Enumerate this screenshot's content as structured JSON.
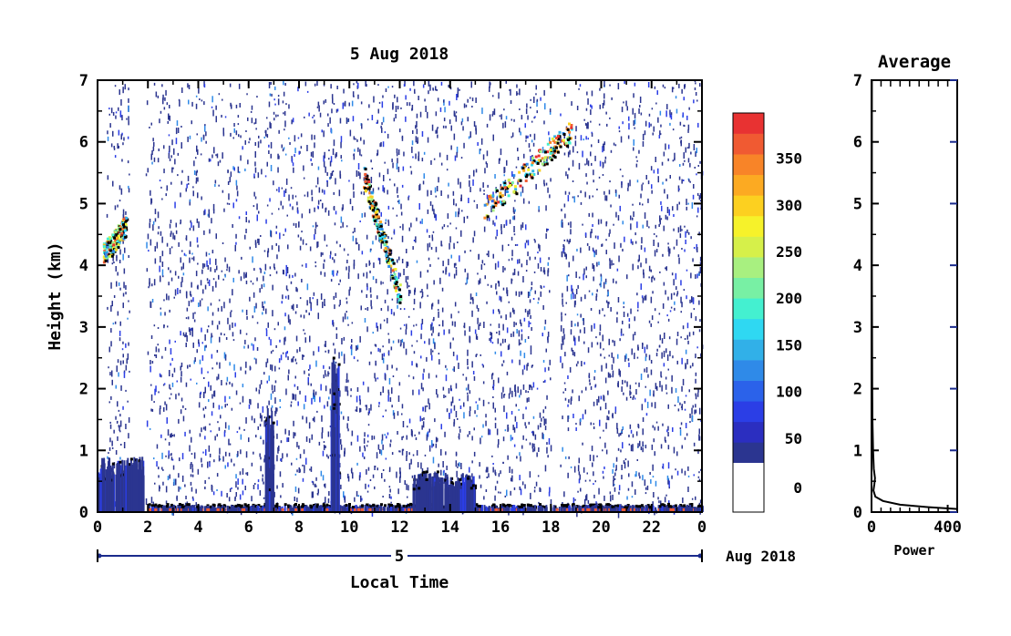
{
  "chart_data": [
    {
      "type": "heatmap",
      "title": "5 Aug 2018",
      "xlabel": "Local Time",
      "ylabel": "Height (km)",
      "xlim": [
        0,
        24
      ],
      "ylim": [
        0,
        7
      ],
      "x_ticks": [
        "0",
        "2",
        "4",
        "6",
        "8",
        "10",
        "12",
        "14",
        "16",
        "18",
        "20",
        "22",
        "0"
      ],
      "y_ticks": [
        "0",
        "1",
        "2",
        "3",
        "4",
        "5",
        "6",
        "7"
      ],
      "date_axis": {
        "day": "5",
        "label": "Aug 2018"
      },
      "colorbar": {
        "ticks": [
          "0",
          "50",
          "100",
          "150",
          "200",
          "250",
          "300",
          "350"
        ],
        "range": [
          0,
          375
        ],
        "colors": [
          "#2b3590",
          "#2b2ec0",
          "#2b3ee6",
          "#2b62ea",
          "#2f8ae8",
          "#31b0e8",
          "#2fd8f2",
          "#44f0d0",
          "#78f0a4",
          "#a8f080",
          "#d6f04a",
          "#f6f22a",
          "#fcd020",
          "#fcaa22",
          "#f88428",
          "#f05a32",
          "#e83232"
        ]
      },
      "features": [
        {
          "name": "low-level echo",
          "x": [
            0,
            1.8
          ],
          "top_km": 0.9
        },
        {
          "name": "near-surface layer",
          "x": [
            2,
            24
          ],
          "top_km": 0.12
        },
        {
          "name": "convective plume",
          "x": [
            6.8,
            6.8
          ],
          "top_km": 1.7
        },
        {
          "name": "convective plume",
          "x": [
            9.4,
            9.4
          ],
          "top_km": 2.5
        },
        {
          "name": "afternoon layer",
          "x": [
            12.5,
            15
          ],
          "top_km": 0.65
        },
        {
          "name": "descending elevated layer",
          "x": [
            10.5,
            12
          ],
          "y_km": [
            5.5,
            3.5
          ]
        },
        {
          "name": "ascending elevated layer",
          "x": [
            15.3,
            18.8
          ],
          "y_km": [
            4.9,
            6.2
          ]
        },
        {
          "name": "early elevated layer",
          "x": [
            0.2,
            1.1
          ],
          "y_km": [
            4.2,
            4.65
          ]
        }
      ]
    },
    {
      "type": "line",
      "title": "Average",
      "xlabel": "Power",
      "ylabel": "",
      "xlim": [
        0,
        450
      ],
      "ylim": [
        0,
        7
      ],
      "x_ticks": [
        "0",
        "400"
      ],
      "y_ticks": [
        "0",
        "1",
        "2",
        "3",
        "4",
        "5",
        "6",
        "7"
      ],
      "series": [
        {
          "x": [
            450,
            300,
            150,
            60,
            20,
            10,
            15,
            18,
            12,
            8,
            5,
            4,
            3,
            2,
            2,
            2
          ],
          "y": [
            0.05,
            0.08,
            0.12,
            0.18,
            0.25,
            0.35,
            0.45,
            0.55,
            0.7,
            1.0,
            1.5,
            2.0,
            3.0,
            4.0,
            5.0,
            7.0
          ]
        }
      ]
    }
  ]
}
